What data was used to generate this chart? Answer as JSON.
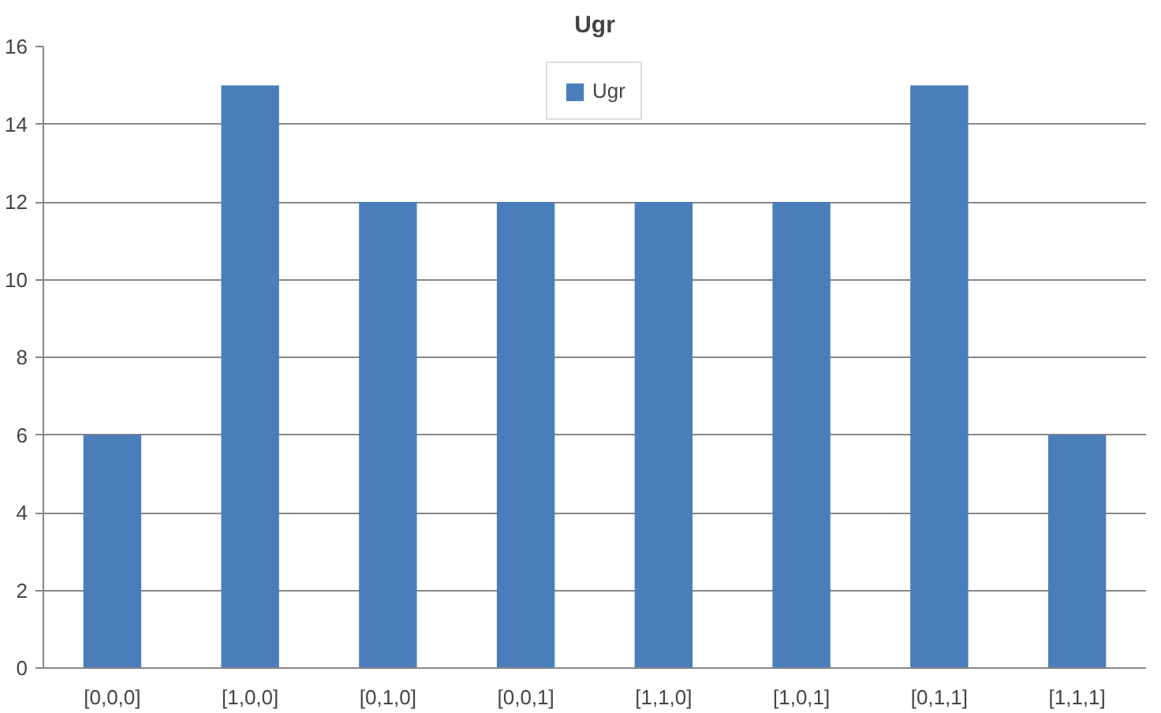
{
  "chart_data": {
    "type": "bar",
    "title": "Ugr",
    "categories": [
      "[0,0,0]",
      "[1,0,0]",
      "[0,1,0]",
      "[0,0,1]",
      "[1,1,0]",
      "[1,0,1]",
      "[0,1,1]",
      "[1,1,1]"
    ],
    "series": [
      {
        "name": "Ugr",
        "color": "#4a7ebb",
        "values": [
          6,
          15,
          12,
          12,
          12,
          12,
          15,
          6
        ]
      }
    ],
    "ylim": [
      0,
      16
    ],
    "yticks": [
      0,
      2,
      4,
      6,
      8,
      10,
      12,
      14,
      16
    ],
    "grid": "y",
    "legend": "top"
  }
}
